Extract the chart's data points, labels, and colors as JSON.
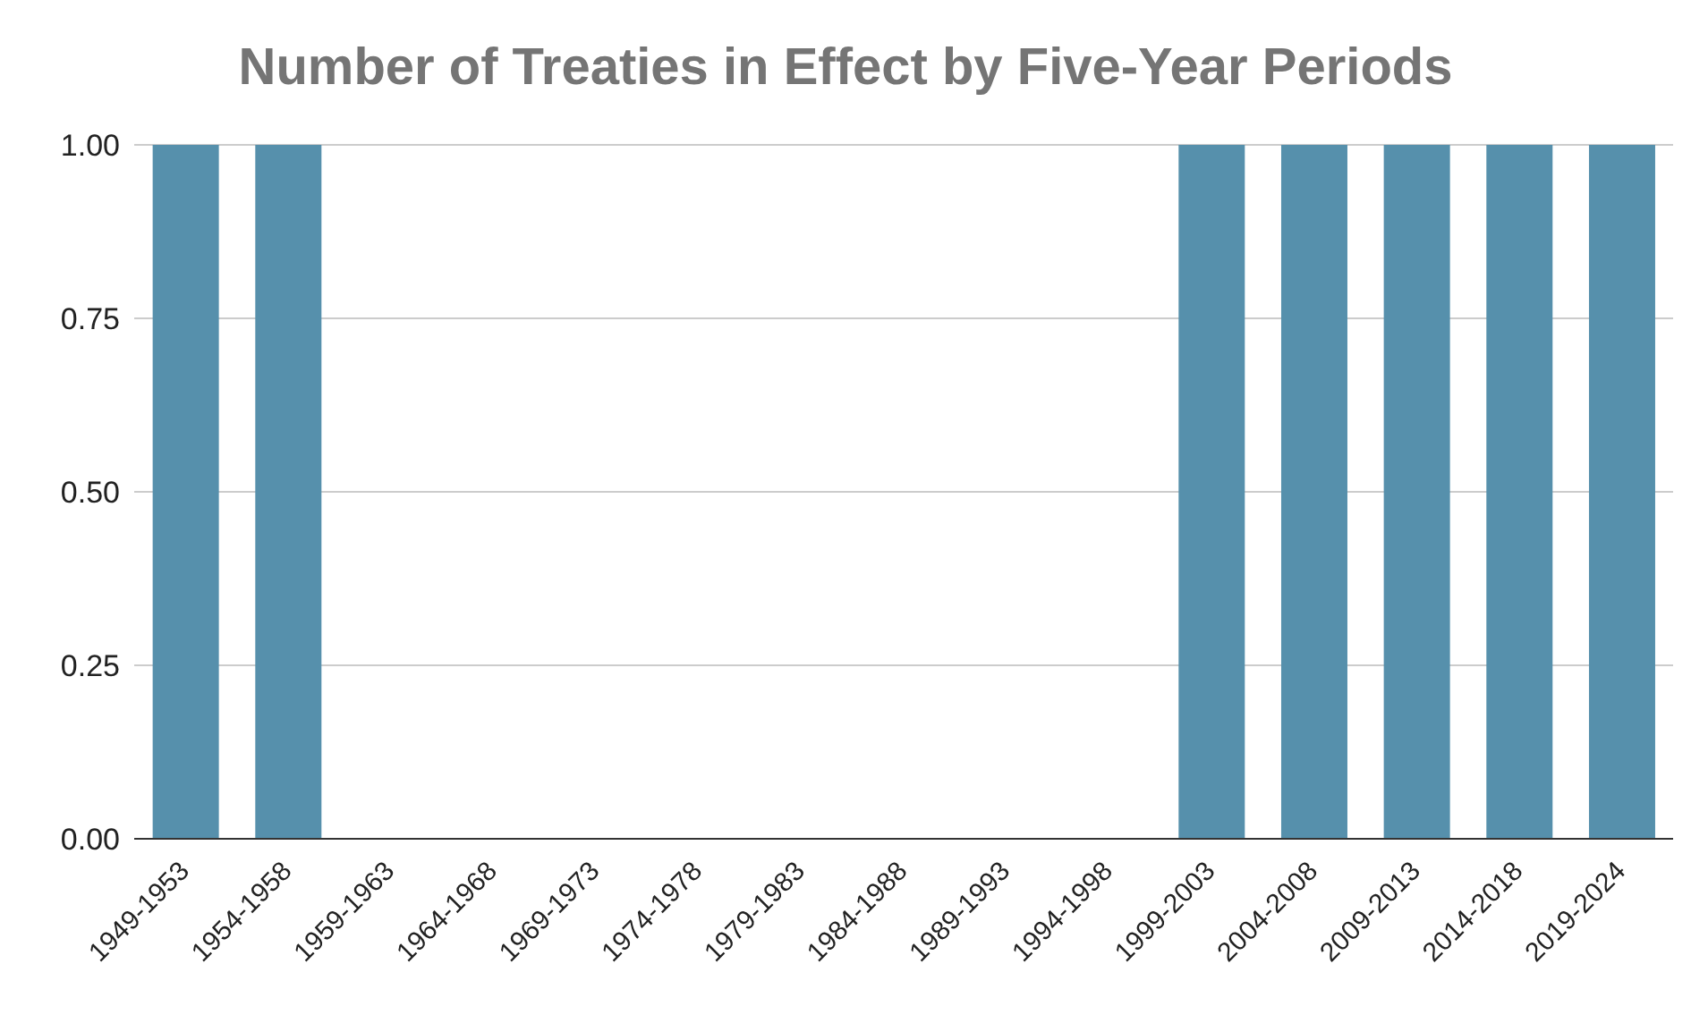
{
  "chart_data": {
    "type": "bar",
    "title": "Number of Treaties in Effect by Five-Year Periods",
    "categories": [
      "1949-1953",
      "1954-1958",
      "1959-1963",
      "1964-1968",
      "1969-1973",
      "1974-1978",
      "1979-1983",
      "1984-1988",
      "1989-1993",
      "1994-1998",
      "1999-2003",
      "2004-2008",
      "2009-2013",
      "2014-2018",
      "2019-2024"
    ],
    "values": [
      1,
      1,
      0,
      0,
      0,
      0,
      0,
      0,
      0,
      0,
      1,
      1,
      1,
      1,
      1
    ],
    "color": "#5690ac",
    "ylim": [
      0,
      1
    ],
    "yticks": [
      {
        "value": 0,
        "label": "0.00"
      },
      {
        "value": 0.25,
        "label": "0.25"
      },
      {
        "value": 0.5,
        "label": "0.50"
      },
      {
        "value": 0.75,
        "label": "0.75"
      },
      {
        "value": 1,
        "label": "1.00"
      }
    ],
    "grid": "y"
  }
}
